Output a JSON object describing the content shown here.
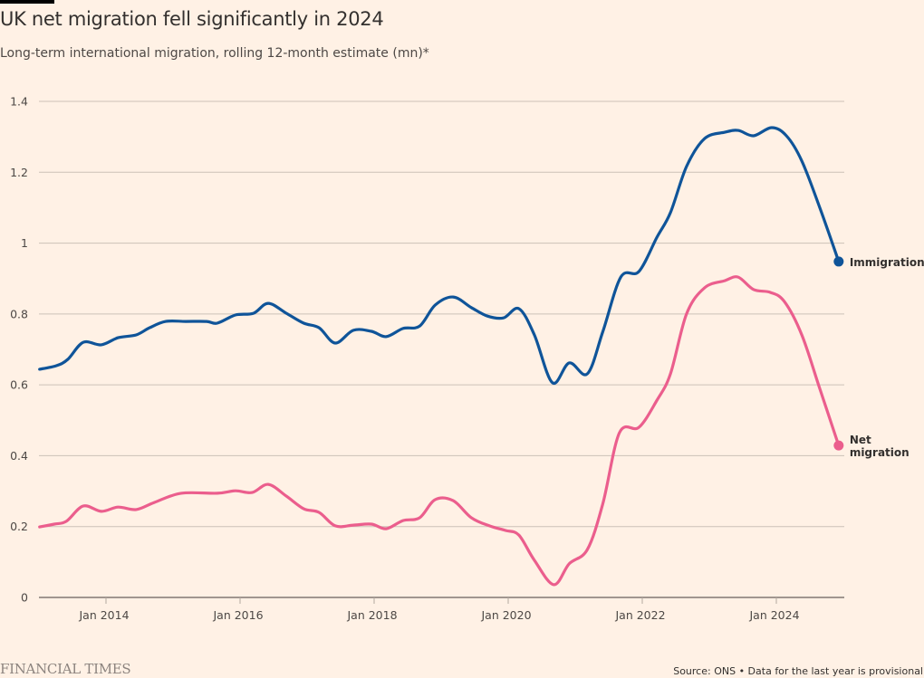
{
  "header": {
    "title": "UK net migration fell significantly in 2024",
    "subtitle": "Long-term international migration, rolling 12-month estimate (mn)*"
  },
  "footer": {
    "brand": "FINANCIAL TIMES",
    "source": "Source: ONS • Data for the last year is provisional"
  },
  "chart_data": {
    "type": "line",
    "title": "UK net migration fell significantly in 2024",
    "subtitle": "Long-term international migration, rolling 12-month estimate (mn)*",
    "xlabel": "",
    "ylabel": "mn",
    "xlim": [
      2013.0,
      2025.0
    ],
    "ylim": [
      0,
      1.4
    ],
    "grid": true,
    "legend": "direct-labels-right",
    "y_ticks": [
      {
        "value": 0,
        "label": "0"
      },
      {
        "value": 0.2,
        "label": "0.2"
      },
      {
        "value": 0.4,
        "label": "0.4"
      },
      {
        "value": 0.6,
        "label": "0.6"
      },
      {
        "value": 0.8,
        "label": "0.8"
      },
      {
        "value": 1.0,
        "label": "1"
      },
      {
        "value": 1.2,
        "label": "1.2"
      },
      {
        "value": 1.4,
        "label": "1.4"
      }
    ],
    "x_ticks": [
      {
        "value": 2014,
        "label": "Jan 2014"
      },
      {
        "value": 2016,
        "label": "Jan 2016"
      },
      {
        "value": 2018,
        "label": "Jan 2018"
      },
      {
        "value": 2020,
        "label": "Jan 2020"
      },
      {
        "value": 2022,
        "label": "Jan 2022"
      },
      {
        "value": 2024,
        "label": "Jan 2024"
      }
    ],
    "series": [
      {
        "name": "Immigration",
        "label": "Immigration",
        "color": "#0f5499",
        "x": [
          2013.01,
          2013.26,
          2013.43,
          2013.66,
          2013.93,
          2014.18,
          2014.45,
          2014.65,
          2014.89,
          2015.19,
          2015.5,
          2015.66,
          2015.93,
          2016.2,
          2016.42,
          2016.69,
          2016.95,
          2017.18,
          2017.42,
          2017.69,
          2017.96,
          2018.18,
          2018.43,
          2018.68,
          2018.91,
          2019.18,
          2019.45,
          2019.69,
          2019.93,
          2020.16,
          2020.39,
          2020.66,
          2020.91,
          2021.18,
          2021.41,
          2021.68,
          2021.95,
          2022.22,
          2022.42,
          2022.66,
          2022.93,
          2023.23,
          2023.43,
          2023.66,
          2023.93,
          2024.15,
          2024.38,
          2024.65,
          2024.93
        ],
        "values": [
          0.644,
          0.654,
          0.672,
          0.72,
          0.713,
          0.733,
          0.741,
          0.761,
          0.779,
          0.779,
          0.779,
          0.774,
          0.797,
          0.802,
          0.83,
          0.802,
          0.774,
          0.761,
          0.718,
          0.754,
          0.751,
          0.736,
          0.759,
          0.766,
          0.825,
          0.848,
          0.818,
          0.794,
          0.789,
          0.815,
          0.741,
          0.606,
          0.662,
          0.631,
          0.749,
          0.904,
          0.92,
          1.017,
          1.086,
          1.216,
          1.295,
          1.313,
          1.318,
          1.303,
          1.326,
          1.303,
          1.232,
          1.099,
          0.948
        ]
      },
      {
        "name": "Net migration",
        "label": [
          "Net",
          "migration"
        ],
        "color": "#eb5e8d",
        "x": [
          2013.01,
          2013.23,
          2013.41,
          2013.66,
          2013.93,
          2014.18,
          2014.45,
          2014.72,
          2015.12,
          2015.66,
          2015.93,
          2016.18,
          2016.42,
          2016.69,
          2016.95,
          2017.18,
          2017.42,
          2017.69,
          2017.96,
          2018.18,
          2018.43,
          2018.68,
          2018.91,
          2019.18,
          2019.45,
          2019.72,
          2019.96,
          2020.16,
          2020.39,
          2020.68,
          2020.91,
          2021.18,
          2021.41,
          2021.66,
          2021.95,
          2022.22,
          2022.42,
          2022.66,
          2022.93,
          2023.23,
          2023.43,
          2023.66,
          2023.91,
          2024.12,
          2024.38,
          2024.65,
          2024.93
        ],
        "values": [
          0.199,
          0.207,
          0.215,
          0.258,
          0.243,
          0.255,
          0.248,
          0.268,
          0.294,
          0.294,
          0.301,
          0.296,
          0.319,
          0.286,
          0.25,
          0.24,
          0.202,
          0.204,
          0.207,
          0.194,
          0.217,
          0.225,
          0.276,
          0.273,
          0.225,
          0.202,
          0.189,
          0.176,
          0.105,
          0.036,
          0.095,
          0.135,
          0.263,
          0.465,
          0.48,
          0.557,
          0.631,
          0.8,
          0.874,
          0.894,
          0.904,
          0.869,
          0.861,
          0.835,
          0.741,
          0.588,
          0.429
        ]
      }
    ]
  }
}
